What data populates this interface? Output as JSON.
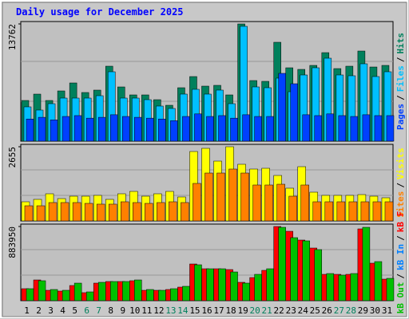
{
  "title": "Daily usage for December 2025",
  "legend_separator": "/",
  "chart_data": [
    {
      "type": "bar",
      "ylim": [
        0,
        13762
      ],
      "yticks": [
        13762
      ],
      "series": [
        {
          "name": "Hits",
          "color": "#00805c",
          "values": [
            4775,
            5523,
            4775,
            5898,
            6834,
            5711,
            5992,
            8800,
            6366,
            5430,
            5430,
            4868,
            4213,
            6272,
            7583,
            6460,
            6553,
            5430,
            13762,
            7115,
            7021,
            11609,
            8613,
            8426,
            8894,
            10391,
            8519,
            8800,
            10579,
            8706,
            8894
          ]
        },
        {
          "name": "Files",
          "color": "#00c0ff",
          "values": [
            4026,
            3651,
            4400,
            5055,
            5055,
            5055,
            5336,
            8145,
            5055,
            5055,
            4868,
            4119,
            3838,
            5523,
            6085,
            5523,
            5992,
            4400,
            13481,
            6366,
            6272,
            7396,
            5804,
            7770,
            8613,
            9736,
            7770,
            7677,
            9081,
            7583,
            8145
          ]
        },
        {
          "name": "Pages",
          "color": "#0040ff",
          "values": [
            2600,
            2800,
            2500,
            2900,
            3000,
            2700,
            2800,
            3100,
            2900,
            2800,
            2700,
            2600,
            2400,
            2900,
            3200,
            2900,
            3000,
            2700,
            3100,
            2900,
            2900,
            7958,
            6740,
            3100,
            3000,
            3200,
            3000,
            2900,
            3100,
            3000,
            3000
          ]
        }
      ]
    },
    {
      "type": "bar",
      "ylim": [
        0,
        2655
      ],
      "yticks": [
        2655
      ],
      "series": [
        {
          "name": "Visits",
          "color": "#ffff00",
          "values": [
            685,
            771,
            971,
            799,
            885,
            885,
            914,
            771,
            971,
            1056,
            885,
            971,
            1056,
            857,
            2484,
            2598,
            2141,
            2655,
            2027,
            1856,
            1884,
            1627,
            1171,
            1941,
            1028,
            914,
            914,
            914,
            942,
            885,
            828
          ]
        },
        {
          "name": "Sites",
          "color": "#ff8000",
          "values": [
            542,
            542,
            657,
            657,
            657,
            628,
            600,
            600,
            685,
            657,
            628,
            657,
            685,
            657,
            1342,
            1713,
            1713,
            1856,
            1713,
            1285,
            1285,
            1313,
            885,
            1285,
            685,
            685,
            685,
            685,
            685,
            685,
            685
          ]
        }
      ]
    },
    {
      "type": "bar",
      "ylim": [
        0,
        883950
      ],
      "yticks": [
        883950
      ],
      "categories": [
        "1",
        "2",
        "3",
        "4",
        "5",
        "6",
        "7",
        "8",
        "9",
        "10",
        "11",
        "12",
        "13",
        "14",
        "15",
        "16",
        "17",
        "18",
        "19",
        "20",
        "21",
        "22",
        "23",
        "24",
        "25",
        "26",
        "27",
        "28",
        "29",
        "30",
        "31"
      ],
      "category_colors": [
        "#000000",
        "#000000",
        "#000000",
        "#000000",
        "#000000",
        "#00805c",
        "#00805c",
        "#000000",
        "#000000",
        "#000000",
        "#000000",
        "#000000",
        "#00805c",
        "#00805c",
        "#000000",
        "#000000",
        "#000000",
        "#000000",
        "#000000",
        "#00805c",
        "#00805c",
        "#000000",
        "#000000",
        "#000000",
        "#000000",
        "#000000",
        "#00805c",
        "#00805c",
        "#000000",
        "#000000",
        "#000000"
      ],
      "series": [
        {
          "name": "kB F",
          "color": "#ff0000",
          "values": [
            142600,
            247100,
            123600,
            114100,
            180600,
            95100,
            209100,
            228100,
            228100,
            237600,
            123600,
            123600,
            133100,
            161600,
            437200,
            380200,
            380200,
            370700,
            218600,
            275600,
            361200,
            883950,
            826900,
            722400,
            627300,
            313700,
            313700,
            313700,
            855500,
            446700,
            256600
          ]
        },
        {
          "name": "kB In",
          "color": "#0080ff",
          "values": [
            0,
            0,
            0,
            0,
            0,
            0,
            0,
            0,
            0,
            0,
            0,
            0,
            0,
            0,
            0,
            0,
            0,
            0,
            0,
            0,
            0,
            0,
            0,
            0,
            0,
            0,
            0,
            0,
            0,
            0,
            0
          ]
        },
        {
          "name": "kB Out",
          "color": "#00c000",
          "values": [
            142600,
            237600,
            133100,
            123600,
            209100,
            104600,
            218600,
            228100,
            228100,
            247100,
            133100,
            123600,
            142600,
            171100,
            427700,
            380200,
            380200,
            342200,
            209100,
            313700,
            380200,
            874500,
            750900,
            712900,
            608300,
            323200,
            304200,
            323200,
            874500,
            465700,
            266100
          ]
        }
      ]
    }
  ]
}
